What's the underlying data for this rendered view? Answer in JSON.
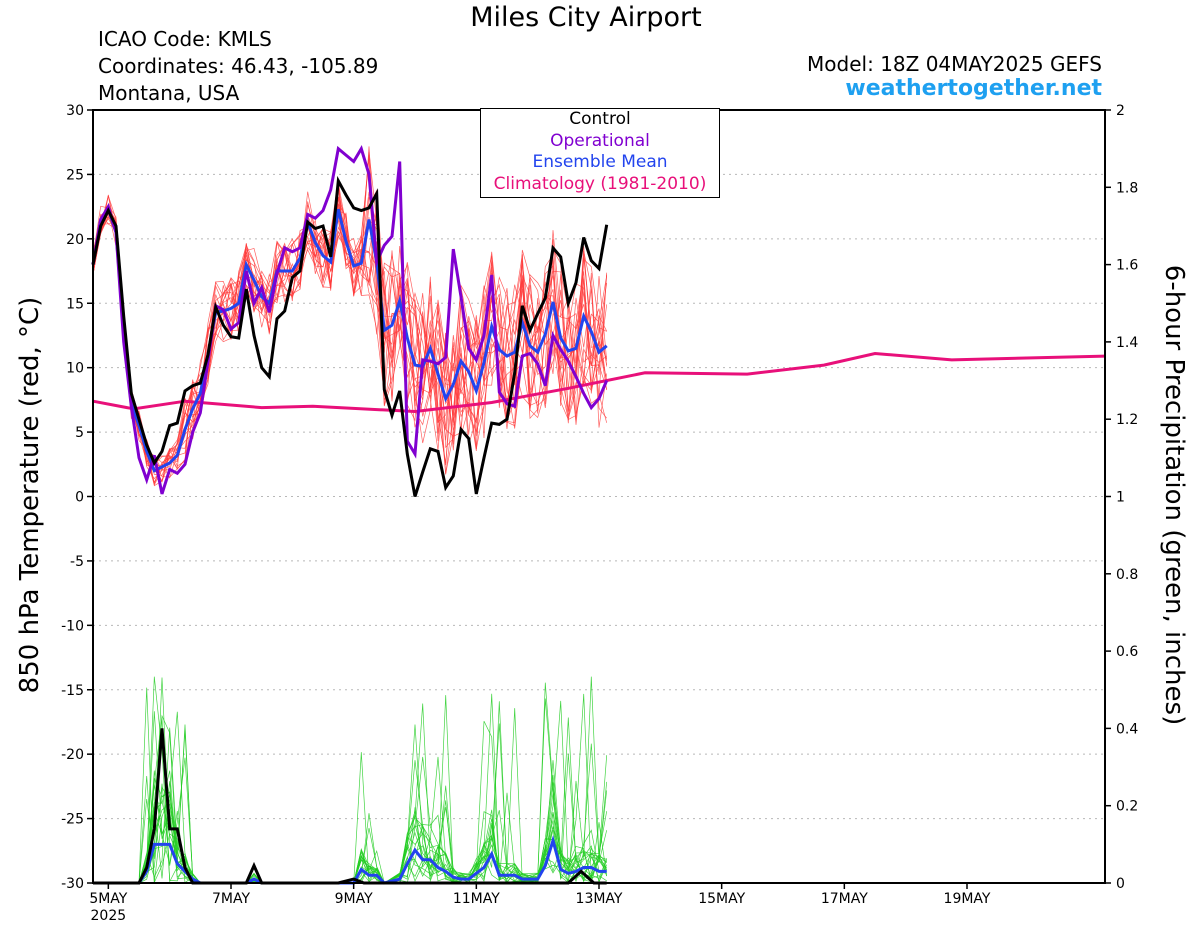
{
  "header": {
    "title": "Miles City Airport",
    "icao": "ICAO Code: KMLS",
    "coordinates": "Coordinates: 46.43, -105.89",
    "location": "Montana, USA",
    "model": "Model: 18Z 04MAY2025 GEFS",
    "brand": "weathertogether.net",
    "brand_color": "#1ea0f0"
  },
  "legend": [
    {
      "label": "Control",
      "color": "#000000"
    },
    {
      "label": "Operational",
      "color": "#8000d0"
    },
    {
      "label": "Ensemble Mean",
      "color": "#2244ee"
    },
    {
      "label": "Climatology (1981-2010)",
      "color": "#e8107a"
    }
  ],
  "chart_data": {
    "type": "line",
    "ylabel_left": "850 hPa Temperature (red, °C)",
    "ylabel_right": "6-hour Precipitation (green, inches)",
    "ylim_left": [
      -30,
      30
    ],
    "ylim_right": [
      0,
      2
    ],
    "yticks_left": [
      "30",
      "25",
      "20",
      "15",
      "10",
      "5",
      "0",
      "-5",
      "-10",
      "-15",
      "-20",
      "-25",
      "-30"
    ],
    "yticks_right": [
      "2",
      "1.8",
      "1.6",
      "1.4",
      "1.2",
      "1",
      "0.8",
      "0.6",
      "0.4",
      "0.2",
      "0"
    ],
    "x_unit": "hours since 5MAY 00Z",
    "x_range": [
      -6,
      390
    ],
    "xticks": [
      {
        "h": 0,
        "label": "5MAY",
        "sub": "2025"
      },
      {
        "h": 48,
        "label": "7MAY"
      },
      {
        "h": 96,
        "label": "9MAY"
      },
      {
        "h": 144,
        "label": "11MAY"
      },
      {
        "h": 192,
        "label": "13MAY"
      },
      {
        "h": 240,
        "label": "15MAY"
      },
      {
        "h": 288,
        "label": "17MAY"
      },
      {
        "h": 336,
        "label": "19MAY"
      }
    ],
    "grid": "dotted horizontal",
    "temperature": {
      "control": [
        [
          -6,
          18
        ],
        [
          -3,
          21
        ],
        [
          0,
          22.2
        ],
        [
          3,
          21
        ],
        [
          6,
          14
        ],
        [
          9,
          8
        ],
        [
          12,
          6
        ],
        [
          15,
          4
        ],
        [
          18,
          2.6
        ],
        [
          21,
          3.5
        ],
        [
          24,
          5.5
        ],
        [
          27,
          5.7
        ],
        [
          30,
          8.2
        ],
        [
          33,
          8.6
        ],
        [
          36,
          8.8
        ],
        [
          39,
          11
        ],
        [
          42,
          14.7
        ],
        [
          45,
          13.3
        ],
        [
          48,
          12.4
        ],
        [
          51,
          12.3
        ],
        [
          54,
          16.1
        ],
        [
          57,
          12.5
        ],
        [
          60,
          10
        ],
        [
          63,
          9.3
        ],
        [
          66,
          13.8
        ],
        [
          69,
          14.4
        ],
        [
          72,
          17
        ],
        [
          75,
          17.5
        ],
        [
          78,
          21.3
        ],
        [
          81,
          20.8
        ],
        [
          84,
          21
        ],
        [
          87,
          18.6
        ],
        [
          90,
          24.5
        ],
        [
          93,
          23.4
        ],
        [
          96,
          22.4
        ],
        [
          99,
          22.2
        ],
        [
          102,
          22.4
        ],
        [
          105,
          23.5
        ],
        [
          108,
          8.3
        ],
        [
          111,
          6.3
        ],
        [
          114,
          8.2
        ],
        [
          117,
          3.3
        ],
        [
          120,
          0
        ],
        [
          123,
          1.9
        ],
        [
          126,
          3.7
        ],
        [
          129,
          3.5
        ],
        [
          132,
          0.7
        ],
        [
          135,
          1.6
        ],
        [
          138,
          5.2
        ],
        [
          141,
          4.5
        ],
        [
          144,
          0.2
        ],
        [
          147,
          3
        ],
        [
          150,
          5.7
        ],
        [
          153,
          5.6
        ],
        [
          156,
          6
        ],
        [
          159,
          9.6
        ],
        [
          162,
          14.8
        ],
        [
          165,
          12.9
        ],
        [
          168,
          14.2
        ],
        [
          171,
          15.4
        ],
        [
          174,
          19.3
        ],
        [
          177,
          18.6
        ],
        [
          180,
          15
        ],
        [
          183,
          16.6
        ],
        [
          186,
          20.1
        ],
        [
          189,
          18.3
        ],
        [
          192,
          17.7
        ],
        [
          195,
          21.1
        ]
      ],
      "operational": [
        [
          -6,
          18
        ],
        [
          -3,
          21.5
        ],
        [
          0,
          22.5
        ],
        [
          3,
          20.5
        ],
        [
          6,
          12
        ],
        [
          9,
          7
        ],
        [
          12,
          3
        ],
        [
          15,
          1.3
        ],
        [
          18,
          3.2
        ],
        [
          21,
          0.2
        ],
        [
          24,
          2.1
        ],
        [
          27,
          1.8
        ],
        [
          30,
          2.5
        ],
        [
          33,
          5
        ],
        [
          36,
          6.5
        ],
        [
          39,
          10.5
        ],
        [
          42,
          14.8
        ],
        [
          45,
          14.5
        ],
        [
          48,
          13
        ],
        [
          51,
          13.5
        ],
        [
          54,
          17.5
        ],
        [
          57,
          15
        ],
        [
          60,
          16.2
        ],
        [
          63,
          14.3
        ],
        [
          66,
          17.3
        ],
        [
          69,
          19.3
        ],
        [
          72,
          19
        ],
        [
          75,
          19.3
        ],
        [
          78,
          21.9
        ],
        [
          81,
          21.6
        ],
        [
          84,
          22.2
        ],
        [
          87,
          23.8
        ],
        [
          90,
          27
        ],
        [
          93,
          26.5
        ],
        [
          96,
          26
        ],
        [
          99,
          27
        ],
        [
          102,
          25
        ],
        [
          105,
          18.2
        ],
        [
          108,
          19.5
        ],
        [
          111,
          20.2
        ],
        [
          114,
          26
        ],
        [
          117,
          4.3
        ],
        [
          120,
          3.3
        ],
        [
          123,
          10.6
        ],
        [
          126,
          10.5
        ],
        [
          129,
          10.3
        ],
        [
          132,
          10.8
        ],
        [
          135,
          19.2
        ],
        [
          138,
          15.5
        ],
        [
          141,
          11.5
        ],
        [
          144,
          10.6
        ],
        [
          147,
          12.5
        ],
        [
          150,
          17.2
        ],
        [
          153,
          8.1
        ],
        [
          156,
          7.2
        ],
        [
          159,
          7
        ],
        [
          162,
          10.9
        ],
        [
          165,
          11.1
        ],
        [
          168,
          10.3
        ],
        [
          171,
          8.6
        ],
        [
          174,
          12.5
        ],
        [
          177,
          11.4
        ],
        [
          180,
          10.5
        ],
        [
          183,
          9.3
        ],
        [
          186,
          8
        ],
        [
          189,
          6.9
        ],
        [
          192,
          7.6
        ],
        [
          195,
          9
        ]
      ],
      "ensemble_mean": [
        [
          -6,
          18
        ],
        [
          -3,
          21.5
        ],
        [
          0,
          22.3
        ],
        [
          3,
          20.5
        ],
        [
          6,
          13
        ],
        [
          9,
          7.2
        ],
        [
          12,
          5.5
        ],
        [
          15,
          3.5
        ],
        [
          18,
          2
        ],
        [
          21,
          2.3
        ],
        [
          24,
          2.6
        ],
        [
          27,
          3.2
        ],
        [
          30,
          5.2
        ],
        [
          33,
          6.8
        ],
        [
          36,
          8
        ],
        [
          39,
          11
        ],
        [
          42,
          14.3
        ],
        [
          45,
          14.4
        ],
        [
          48,
          14.6
        ],
        [
          51,
          15
        ],
        [
          54,
          18
        ],
        [
          57,
          16.8
        ],
        [
          60,
          15.5
        ],
        [
          63,
          15
        ],
        [
          66,
          17.5
        ],
        [
          69,
          17.5
        ],
        [
          72,
          17.5
        ],
        [
          75,
          18.5
        ],
        [
          78,
          21.3
        ],
        [
          81,
          19.7
        ],
        [
          84,
          18.7
        ],
        [
          87,
          18.2
        ],
        [
          90,
          22.3
        ],
        [
          93,
          19.8
        ],
        [
          96,
          17.9
        ],
        [
          99,
          18.1
        ],
        [
          102,
          21.5
        ],
        [
          105,
          18.2
        ],
        [
          108,
          12.9
        ],
        [
          111,
          13.3
        ],
        [
          114,
          15.2
        ],
        [
          117,
          12.3
        ],
        [
          120,
          10.2
        ],
        [
          123,
          10.1
        ],
        [
          126,
          11.5
        ],
        [
          129,
          9.5
        ],
        [
          132,
          7.6
        ],
        [
          135,
          8.7
        ],
        [
          138,
          10.5
        ],
        [
          141,
          9.7
        ],
        [
          144,
          8.2
        ],
        [
          147,
          10.4
        ],
        [
          150,
          13.2
        ],
        [
          153,
          11.4
        ],
        [
          156,
          10.9
        ],
        [
          159,
          11.2
        ],
        [
          162,
          13.5
        ],
        [
          165,
          11.7
        ],
        [
          168,
          11.2
        ],
        [
          171,
          12.6
        ],
        [
          174,
          15.1
        ],
        [
          177,
          12.3
        ],
        [
          180,
          11.3
        ],
        [
          183,
          11.5
        ],
        [
          186,
          14
        ],
        [
          189,
          12.8
        ],
        [
          192,
          11.2
        ],
        [
          195,
          11.7
        ]
      ],
      "climatology": [
        [
          -6,
          7.4
        ],
        [
          10,
          6.8
        ],
        [
          30,
          7.4
        ],
        [
          60,
          6.9
        ],
        [
          80,
          7
        ],
        [
          120,
          6.6
        ],
        [
          150,
          7.3
        ],
        [
          180,
          8.4
        ],
        [
          210,
          9.6
        ],
        [
          250,
          9.5
        ],
        [
          280,
          10.2
        ],
        [
          300,
          11.1
        ],
        [
          330,
          10.6
        ],
        [
          390,
          10.9
        ]
      ]
    },
    "precipitation": {
      "control": [
        [
          -6,
          0
        ],
        [
          0,
          0
        ],
        [
          12,
          0
        ],
        [
          15,
          0.04
        ],
        [
          18,
          0.14
        ],
        [
          21,
          0.4
        ],
        [
          24,
          0.14
        ],
        [
          27,
          0.14
        ],
        [
          30,
          0.04
        ],
        [
          33,
          0
        ],
        [
          54,
          0
        ],
        [
          57,
          0.045
        ],
        [
          60,
          0
        ],
        [
          90,
          0
        ],
        [
          96,
          0.01
        ],
        [
          100,
          0
        ],
        [
          170,
          0
        ],
        [
          180,
          0
        ],
        [
          185,
          0.03
        ],
        [
          190,
          0
        ],
        [
          195,
          0
        ]
      ],
      "ensemble_mean": [
        [
          -6,
          0
        ],
        [
          0,
          0
        ],
        [
          12,
          0
        ],
        [
          15,
          0.03
        ],
        [
          18,
          0.1
        ],
        [
          21,
          0.1
        ],
        [
          24,
          0.1
        ],
        [
          27,
          0.05
        ],
        [
          30,
          0.03
        ],
        [
          33,
          0.01
        ],
        [
          36,
          0
        ],
        [
          54,
          0
        ],
        [
          57,
          0.01
        ],
        [
          60,
          0
        ],
        [
          96,
          0
        ],
        [
          99,
          0.035
        ],
        [
          102,
          0.02
        ],
        [
          105,
          0.02
        ],
        [
          108,
          0
        ],
        [
          114,
          0.01
        ],
        [
          117,
          0.05
        ],
        [
          120,
          0.085
        ],
        [
          123,
          0.06
        ],
        [
          126,
          0.06
        ],
        [
          129,
          0.04
        ],
        [
          132,
          0.03
        ],
        [
          135,
          0.015
        ],
        [
          138,
          0.01
        ],
        [
          141,
          0.01
        ],
        [
          144,
          0.025
        ],
        [
          147,
          0.04
        ],
        [
          150,
          0.075
        ],
        [
          153,
          0.02
        ],
        [
          156,
          0.02
        ],
        [
          159,
          0.02
        ],
        [
          162,
          0.01
        ],
        [
          168,
          0.01
        ],
        [
          171,
          0.045
        ],
        [
          174,
          0.11
        ],
        [
          177,
          0.035
        ],
        [
          180,
          0.025
        ],
        [
          183,
          0.03
        ],
        [
          186,
          0.04
        ],
        [
          189,
          0.04
        ],
        [
          192,
          0.03
        ],
        [
          195,
          0.03
        ]
      ]
    }
  }
}
